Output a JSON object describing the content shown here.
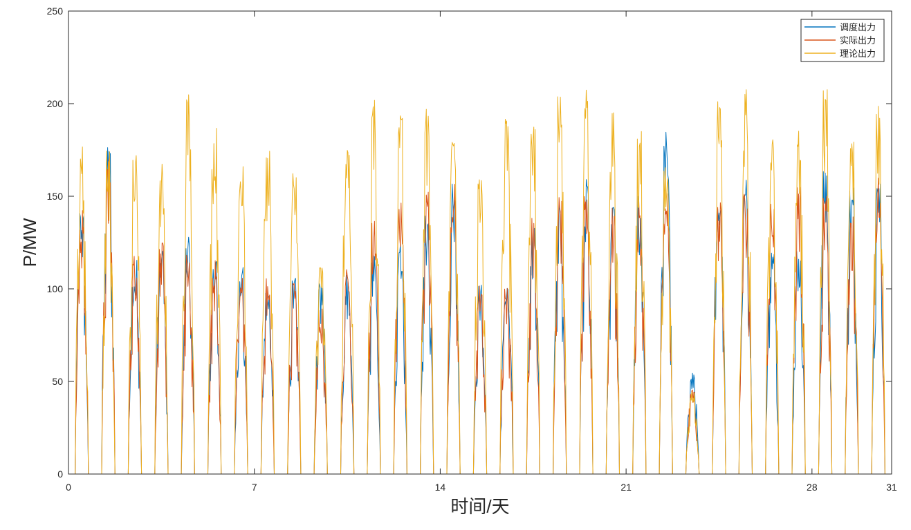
{
  "chart_data": {
    "type": "line",
    "title": "",
    "xlabel": "时间/天",
    "ylabel": "P/MW",
    "xlim": [
      0,
      31
    ],
    "ylim": [
      0,
      250
    ],
    "xticks": [
      0,
      7,
      14,
      21,
      28,
      31
    ],
    "yticks": [
      0,
      50,
      100,
      150,
      200,
      250
    ],
    "grid": false,
    "legend_position": "top-right",
    "samples_per_day": 40,
    "series": [
      {
        "name": "调度出力",
        "color": "#0072BD",
        "daily_peaks": [
          145,
          180,
          120,
          125,
          128,
          120,
          112,
          106,
          106,
          104,
          110,
          120,
          125,
          140,
          160,
          103,
          105,
          140,
          150,
          160,
          150,
          150,
          185,
          55,
          160,
          160,
          122,
          125,
          166,
          159,
          165
        ]
      },
      {
        "name": "实际出力",
        "color": "#D95319",
        "daily_peaks": [
          146,
          172,
          120,
          126,
          120,
          116,
          110,
          107,
          107,
          90,
          112,
          140,
          150,
          160,
          160,
          103,
          106,
          140,
          150,
          150,
          145,
          150,
          155,
          47,
          150,
          155,
          152,
          160,
          155,
          140,
          160
        ]
      },
      {
        "name": "理论出力",
        "color": "#EDB120",
        "daily_peaks": [
          180,
          176,
          175,
          171,
          208,
          192,
          176,
          177,
          173,
          115,
          198,
          202,
          199,
          199,
          197,
          174,
          198,
          198,
          207,
          210,
          197,
          185,
          171,
          45,
          210,
          210,
          182,
          187,
          209,
          180,
          200
        ]
      }
    ]
  }
}
